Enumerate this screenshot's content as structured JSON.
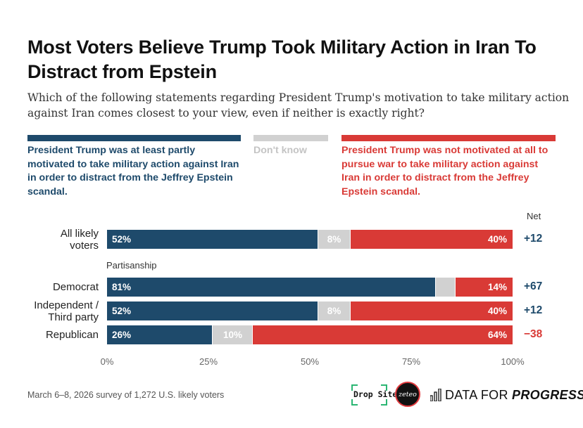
{
  "chart_data": {
    "type": "bar",
    "title": "Most Voters Believe Trump Took Military Action in Iran To Distract from Epstein",
    "subtitle": "Which of the following statements regarding President Trump's motivation to take military action against Iran comes closest to your view, even if neither is exactly right?",
    "orientation": "horizontal",
    "stacked": true,
    "xlim": [
      0,
      100
    ],
    "x_ticks": [
      "0%",
      "25%",
      "50%",
      "75%",
      "100%"
    ],
    "x_tick_values": [
      0,
      25,
      50,
      75,
      100
    ],
    "legend_placement": "top",
    "series": [
      {
        "key": "distract",
        "name": "President Trump was at least partly motivated to take military action against Iran in order to distract from the Jeffrey Epstein scandal.",
        "color": "#1e4a6b"
      },
      {
        "key": "dontknow",
        "name": "Don't know",
        "color": "#d1d1d1"
      },
      {
        "key": "notdistract",
        "name": "President Trump was not motivated at all to pursue war to take military action against Iran in order to distract from the Jeffrey Epstein scandal.",
        "color": "#d93a36"
      }
    ],
    "section_label": "Partisanship",
    "net_header": "Net",
    "rows": [
      {
        "label": "All likely voters",
        "values": [
          52,
          8,
          40
        ],
        "labels": [
          "52%",
          "8%",
          "40%"
        ],
        "net": "+12",
        "net_color": "#1e4a6b"
      },
      {
        "label": "Democrat",
        "values": [
          81,
          5,
          14
        ],
        "labels": [
          "81%",
          "",
          "14%"
        ],
        "net": "+67",
        "net_color": "#1e4a6b"
      },
      {
        "label": "Independent / Third party",
        "values": [
          52,
          8,
          40
        ],
        "labels": [
          "52%",
          "8%",
          "40%"
        ],
        "net": "+12",
        "net_color": "#1e4a6b"
      },
      {
        "label": "Republican",
        "values": [
          26,
          10,
          64
        ],
        "labels": [
          "26%",
          "10%",
          "64%"
        ],
        "net": "−38",
        "net_color": "#d93a36"
      }
    ]
  },
  "footer": {
    "note": "March 6–8, 2026 survey of 1,272 U.S. likely voters"
  },
  "logos": {
    "dropsite": "Drop Site",
    "zeteo": "zeteo",
    "dfp_regular": "DATA FOR ",
    "dfp_bold": "PROGRESS"
  }
}
